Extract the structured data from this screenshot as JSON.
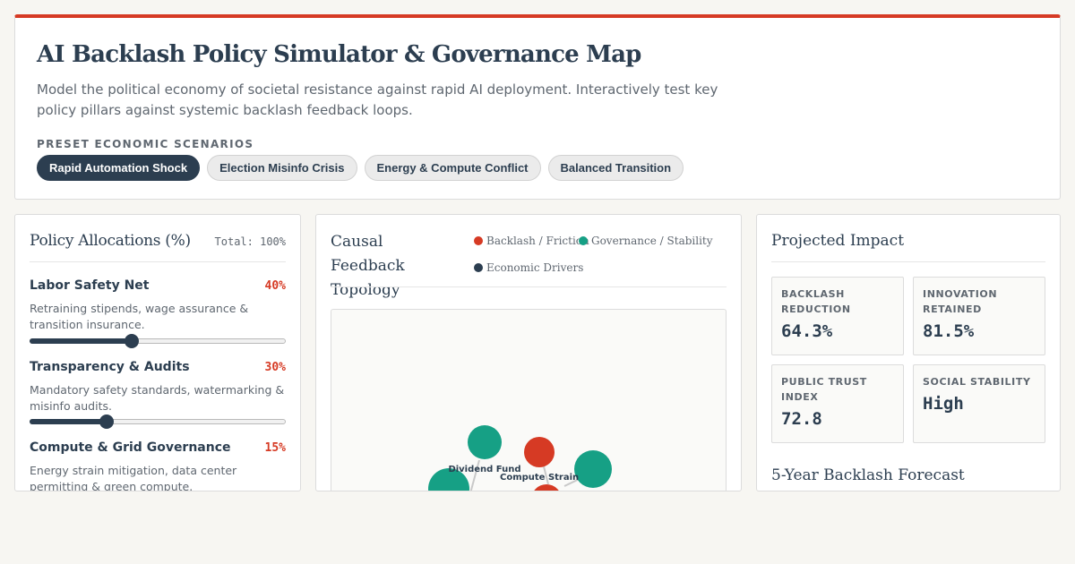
{
  "header": {
    "title": "AI Backlash Policy Simulator & Governance Map",
    "subtitle": "Model the political economy of societal resistance against rapid AI deployment. Interactively test key policy pillars against systemic backlash feedback loops.",
    "preset_label": "PRESET ECONOMIC SCENARIOS",
    "presets": [
      {
        "label": "Rapid Automation Shock",
        "active": true
      },
      {
        "label": "Election Misinfo Crisis",
        "active": false
      },
      {
        "label": "Energy & Compute Conflict",
        "active": false
      },
      {
        "label": "Balanced Transition",
        "active": false
      }
    ]
  },
  "allocations": {
    "title": "Policy Allocations (%)",
    "total": "Total: 100%",
    "policies": [
      {
        "name": "Labor Safety Net",
        "pct_label": "40%",
        "value": 0.4,
        "desc": "Retraining stipends, wage assurance & transition insurance."
      },
      {
        "name": "Transparency & Audits",
        "pct_label": "30%",
        "value": 0.3,
        "desc": "Mandatory safety standards, watermarking & misinfo audits."
      },
      {
        "name": "Compute & Grid Governance",
        "pct_label": "15%",
        "value": 0.15,
        "desc": "Energy strain mitigation, data center permitting & green compute."
      }
    ]
  },
  "topology": {
    "title": "Causal Feedback Topology",
    "legend": [
      {
        "label": "Backlash / Friction",
        "color": "#d63a24"
      },
      {
        "label": "Governance / Stability",
        "color": "#16a085"
      },
      {
        "label": "Economic Drivers",
        "color": "#2c3e50"
      }
    ],
    "nodes": [
      {
        "label": "Dividend Fund",
        "type": "governance"
      },
      {
        "label": "Compute Strain",
        "type": "backlash"
      }
    ]
  },
  "impact": {
    "title": "Projected Impact",
    "metrics": [
      {
        "label": "BACKLASH REDUCTION",
        "value": "64.3%"
      },
      {
        "label": "INNOVATION RETAINED",
        "value": "81.5%"
      },
      {
        "label": "PUBLIC TRUST INDEX",
        "value": "72.8"
      },
      {
        "label": "SOCIAL STABILITY",
        "value": "High"
      }
    ],
    "forecast_title": "5-Year Backlash Forecast"
  },
  "colors": {
    "accent": "#d63a24",
    "navy": "#2c3e50",
    "teal": "#16a085"
  }
}
